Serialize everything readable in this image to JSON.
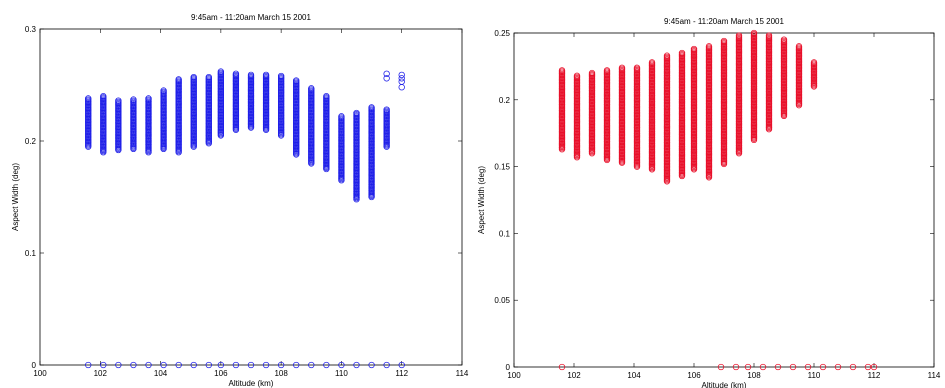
{
  "charts": [
    {
      "chart_data": {
        "type": "scatter",
        "title": "9:45am - 11:20am    March 15  2001",
        "xlabel": "Altitude (km)",
        "ylabel": "Aspect Width (deg)",
        "xlim": [
          100,
          114
        ],
        "ylim": [
          0,
          0.3
        ],
        "xticks": [
          "100",
          "102",
          "104",
          "106",
          "108",
          "110",
          "112",
          "114"
        ],
        "yticks": [
          "0",
          "0.1",
          "0.2",
          "0.3"
        ],
        "grid": false,
        "marker": "circle",
        "color": "#1f1fe8",
        "columns": [
          {
            "x": 101.6,
            "min": 0.195,
            "max": 0.238
          },
          {
            "x": 102.1,
            "min": 0.19,
            "max": 0.24
          },
          {
            "x": 102.6,
            "min": 0.192,
            "max": 0.236
          },
          {
            "x": 103.1,
            "min": 0.193,
            "max": 0.237
          },
          {
            "x": 103.6,
            "min": 0.19,
            "max": 0.238
          },
          {
            "x": 104.1,
            "min": 0.193,
            "max": 0.245
          },
          {
            "x": 104.6,
            "min": 0.19,
            "max": 0.255
          },
          {
            "x": 105.1,
            "min": 0.195,
            "max": 0.257
          },
          {
            "x": 105.6,
            "min": 0.198,
            "max": 0.257
          },
          {
            "x": 106.0,
            "min": 0.205,
            "max": 0.262
          },
          {
            "x": 106.5,
            "min": 0.21,
            "max": 0.26
          },
          {
            "x": 107.0,
            "min": 0.212,
            "max": 0.259
          },
          {
            "x": 107.5,
            "min": 0.21,
            "max": 0.259
          },
          {
            "x": 108.0,
            "min": 0.205,
            "max": 0.258
          },
          {
            "x": 108.5,
            "min": 0.188,
            "max": 0.254
          },
          {
            "x": 109.0,
            "min": 0.18,
            "max": 0.247
          },
          {
            "x": 109.5,
            "min": 0.175,
            "max": 0.24
          },
          {
            "x": 110.0,
            "min": 0.165,
            "max": 0.222
          },
          {
            "x": 110.5,
            "min": 0.148,
            "max": 0.225
          },
          {
            "x": 111.0,
            "min": 0.15,
            "max": 0.23
          },
          {
            "x": 111.5,
            "min": 0.195,
            "max": 0.228
          }
        ],
        "outliers": [
          {
            "x": 111.5,
            "y": 0.26
          },
          {
            "x": 111.5,
            "y": 0.256
          },
          {
            "x": 112.0,
            "y": 0.256
          },
          {
            "x": 112.0,
            "y": 0.253
          },
          {
            "x": 112.0,
            "y": 0.248
          },
          {
            "x": 112.0,
            "y": 0.259
          }
        ],
        "baseline": {
          "y": 0,
          "x": [
            101.6,
            102.1,
            102.6,
            103.1,
            103.6,
            104.1,
            104.6,
            105.1,
            105.6,
            106.0,
            106.5,
            107.0,
            107.5,
            108.0,
            108.5,
            109.0,
            109.5,
            110.0,
            110.5,
            111.0,
            111.5,
            112.0
          ]
        }
      }
    },
    {
      "chart_data": {
        "type": "scatter",
        "title": "9:45am - 11:20am    March 15  2001",
        "xlabel": "Altitude (km)",
        "ylabel": "Aspect Width (deg)",
        "xlim": [
          100,
          114
        ],
        "ylim": [
          0,
          0.25
        ],
        "xticks": [
          "100",
          "102",
          "104",
          "106",
          "108",
          "110",
          "112",
          "114"
        ],
        "yticks": [
          "0",
          "0.05",
          "0.1",
          "0.15",
          "0.2",
          "0.25"
        ],
        "grid": false,
        "marker": "circle",
        "color": "#e8102a",
        "columns": [
          {
            "x": 101.6,
            "min": 0.163,
            "max": 0.222
          },
          {
            "x": 102.1,
            "min": 0.157,
            "max": 0.218
          },
          {
            "x": 102.6,
            "min": 0.16,
            "max": 0.22
          },
          {
            "x": 103.1,
            "min": 0.155,
            "max": 0.222
          },
          {
            "x": 103.6,
            "min": 0.153,
            "max": 0.224
          },
          {
            "x": 104.1,
            "min": 0.15,
            "max": 0.224
          },
          {
            "x": 104.6,
            "min": 0.148,
            "max": 0.228
          },
          {
            "x": 105.1,
            "min": 0.139,
            "max": 0.233
          },
          {
            "x": 105.6,
            "min": 0.143,
            "max": 0.235
          },
          {
            "x": 106.0,
            "min": 0.148,
            "max": 0.238
          },
          {
            "x": 106.5,
            "min": 0.142,
            "max": 0.24
          },
          {
            "x": 107.0,
            "min": 0.152,
            "max": 0.244
          },
          {
            "x": 107.5,
            "min": 0.16,
            "max": 0.248
          },
          {
            "x": 108.0,
            "min": 0.17,
            "max": 0.25
          },
          {
            "x": 108.5,
            "min": 0.178,
            "max": 0.248
          },
          {
            "x": 109.0,
            "min": 0.188,
            "max": 0.245
          },
          {
            "x": 109.5,
            "min": 0.196,
            "max": 0.24
          },
          {
            "x": 110.0,
            "min": 0.21,
            "max": 0.228
          }
        ],
        "outliers": [],
        "baseline": {
          "y": 0,
          "x": [
            101.6,
            106.9,
            107.4,
            107.8,
            108.3,
            108.8,
            109.3,
            109.8,
            110.3,
            110.8,
            111.3,
            111.8,
            112.0
          ]
        }
      }
    }
  ]
}
